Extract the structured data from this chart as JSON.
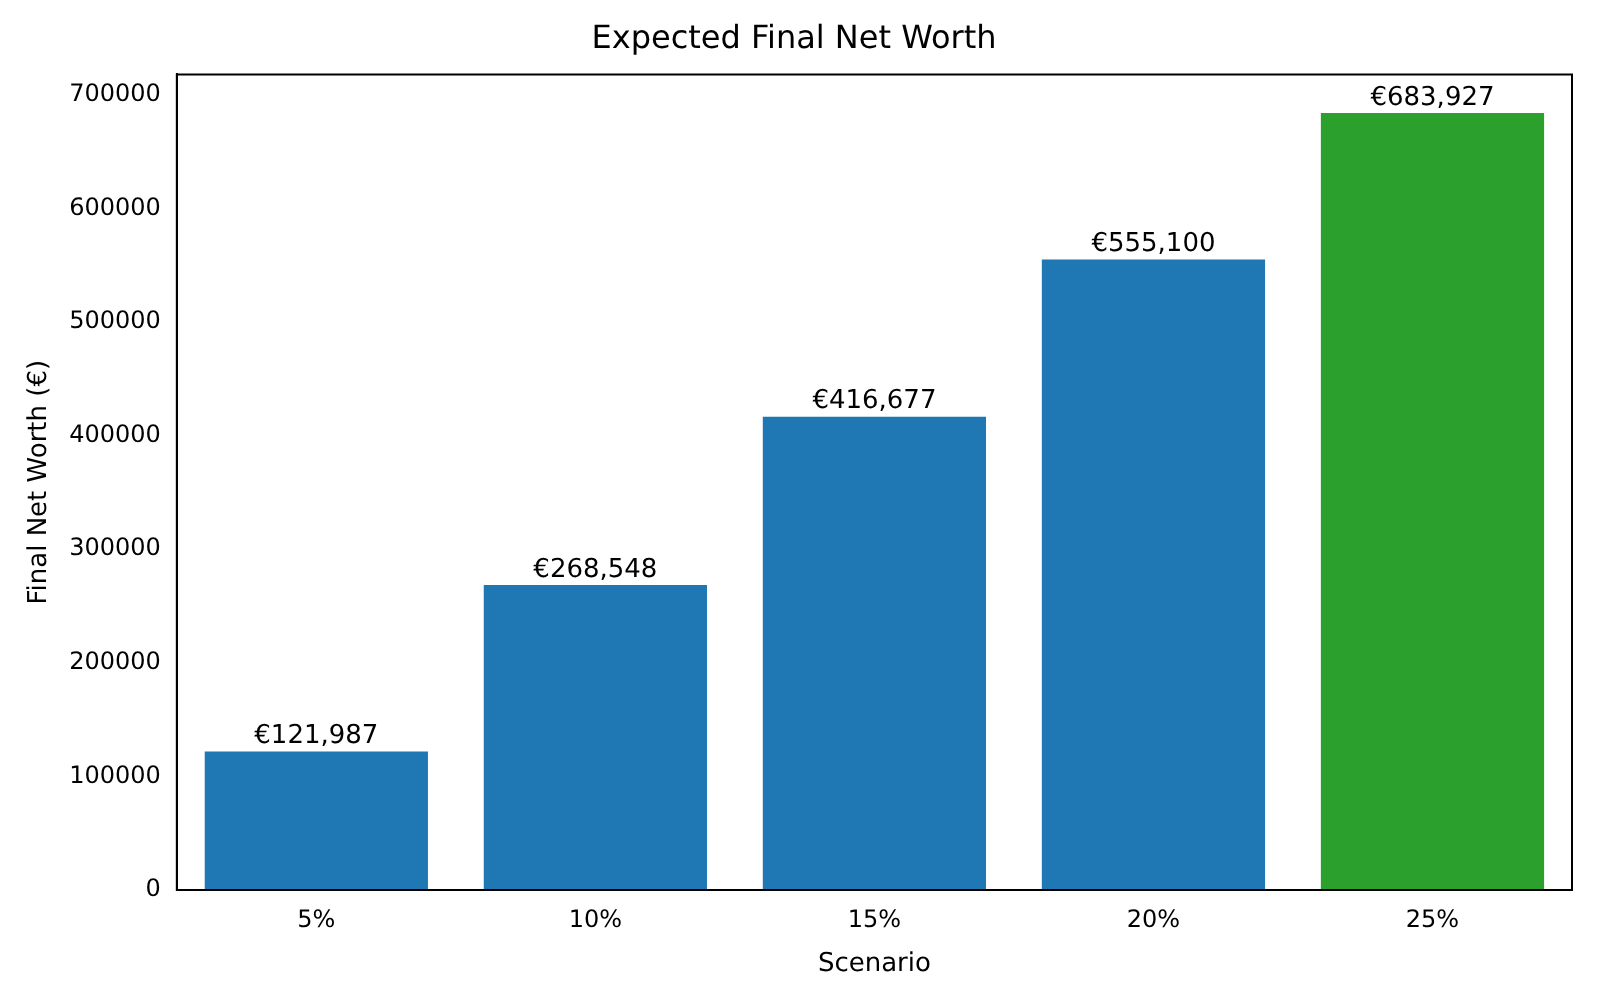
{
  "chart_data": {
    "type": "bar",
    "title": "Expected Final Net Worth",
    "xlabel": "Scenario",
    "ylabel": "Final Net Worth (€)",
    "categories": [
      "5%",
      "10%",
      "15%",
      "20%",
      "25%"
    ],
    "values": [
      121987,
      268548,
      416677,
      555100,
      683927
    ],
    "colors": [
      "#1f77b4",
      "#1f77b4",
      "#1f77b4",
      "#1f77b4",
      "#2ca02c"
    ],
    "value_labels": [
      "€121,987",
      "€268,548",
      "€416,677",
      "€555,100",
      "€683,927"
    ],
    "ylim": [
      0,
      718000
    ],
    "yticks": [
      0,
      100000,
      200000,
      300000,
      400000,
      500000,
      600000,
      700000
    ],
    "grid": false,
    "legend": false
  }
}
